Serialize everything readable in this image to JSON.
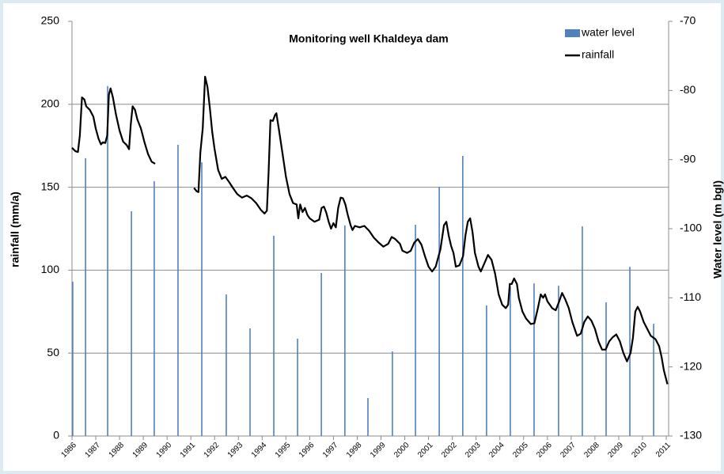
{
  "chart_data": {
    "type": "bar",
    "title": "Monitoring well Khaldeya dam",
    "y_label": "rainfall (mm/a)",
    "y2_label": "Water level (m bgl)",
    "xlim": [
      1986,
      2011.1
    ],
    "xticks": [
      1986,
      1987,
      1988,
      1989,
      1990,
      1991,
      1992,
      1993,
      1994,
      1995,
      1996,
      1997,
      1998,
      1999,
      2000,
      2001,
      2002,
      2003,
      2004,
      2005,
      2006,
      2007,
      2008,
      2009,
      2010,
      2011
    ],
    "ylim": [
      0,
      250
    ],
    "yticks": [
      0,
      50,
      100,
      150,
      200,
      250
    ],
    "y2lim": [
      -130,
      -70
    ],
    "y2ticks": [
      -130,
      -120,
      -110,
      -100,
      -90,
      -80,
      -70
    ],
    "grid": true,
    "legend": "upper right",
    "series": [
      {
        "name": "water level",
        "type": "bar",
        "color": "#4f81bd",
        "x": [
          1986.03,
          1986.57,
          1987.5,
          1988.5,
          1989.46,
          1990.46,
          1991.46,
          1992.49,
          1993.49,
          1994.49,
          1995.49,
          1996.49,
          1997.48,
          1998.45,
          1999.48,
          2000.45,
          2001.45,
          2002.44,
          2003.44,
          2004.44,
          2005.44,
          2006.47,
          2007.47,
          2008.47,
          2009.47,
          2010.47
        ],
        "values": [
          93,
          167.5,
          211,
          135.5,
          153.6,
          175.6,
          165,
          85.4,
          64.9,
          120.7,
          58.7,
          98.3,
          126.9,
          22.9,
          51,
          127.4,
          150.3,
          168.9,
          78.7,
          90.2,
          92,
          90.6,
          126.4,
          80.6,
          102,
          67.7
        ]
      },
      {
        "name": "rainfall",
        "type": "line",
        "color": "#000000",
        "axis": "y2",
        "x": [
          1986.0,
          1986.15,
          1986.25,
          1986.33,
          1986.42,
          1986.52,
          1986.6,
          1986.75,
          1986.9,
          1987.0,
          1987.12,
          1987.22,
          1987.3,
          1987.4,
          1987.48,
          1987.55,
          1987.62,
          1987.72,
          1987.85,
          1988.0,
          1988.15,
          1988.3,
          1988.4,
          1988.47,
          1988.55,
          1988.65,
          1988.75,
          1988.9,
          1989.05,
          1989.2,
          1989.35,
          1989.5,
          1990.6,
          1991.13,
          1991.25,
          1991.32,
          1991.4,
          1991.5,
          1991.6,
          1991.7,
          1991.8,
          1991.9,
          1992.0,
          1992.15,
          1992.3,
          1992.45,
          1992.6,
          1992.75,
          1992.95,
          1993.15,
          1993.35,
          1993.55,
          1993.75,
          1993.95,
          1994.1,
          1994.2,
          1994.27,
          1994.35,
          1994.45,
          1994.55,
          1994.6,
          1994.7,
          1994.85,
          1995.0,
          1995.15,
          1995.3,
          1995.45,
          1995.52,
          1995.6,
          1995.7,
          1995.8,
          1995.9,
          1996.0,
          1996.2,
          1996.4,
          1996.5,
          1996.6,
          1996.7,
          1996.8,
          1996.9,
          1997.0,
          1997.1,
          1997.2,
          1997.3,
          1997.4,
          1997.5,
          1997.6,
          1997.72,
          1997.8,
          1997.9,
          1998.1,
          1998.3,
          1998.5,
          1998.7,
          1998.9,
          1999.1,
          1999.3,
          1999.45,
          1999.6,
          1999.8,
          1999.9,
          2000.1,
          2000.25,
          2000.4,
          2000.55,
          2000.7,
          2000.85,
          2001.0,
          2001.15,
          2001.3,
          2001.5,
          2001.65,
          2001.75,
          2001.85,
          2001.95,
          2002.05,
          2002.15,
          2002.3,
          2002.45,
          2002.55,
          2002.65,
          2002.75,
          2002.85,
          2002.95,
          2003.1,
          2003.2,
          2003.35,
          2003.5,
          2003.65,
          2003.8,
          2003.95,
          2004.1,
          2004.25,
          2004.35,
          2004.42,
          2004.5,
          2004.6,
          2004.72,
          2004.8,
          2004.95,
          2005.1,
          2005.3,
          2005.45,
          2005.6,
          2005.72,
          2005.82,
          2005.9,
          2006.0,
          2006.2,
          2006.35,
          2006.5,
          2006.62,
          2006.75,
          2006.9,
          2007.05,
          2007.25,
          2007.4,
          2007.55,
          2007.7,
          2007.85,
          2008.0,
          2008.15,
          2008.3,
          2008.45,
          2008.6,
          2008.75,
          2008.9,
          2009.05,
          2009.2,
          2009.35,
          2009.5,
          2009.6,
          2009.7,
          2009.8,
          2009.9,
          2010.05,
          2010.2,
          2010.35,
          2010.55,
          2010.7,
          2010.8,
          2010.9,
          2011.05
        ],
        "values": [
          -88.3,
          -88.8,
          -88.9,
          -86.5,
          -81.0,
          -81.3,
          -82.3,
          -82.8,
          -83.8,
          -85.5,
          -87.0,
          -87.8,
          -87.5,
          -87.6,
          -86.5,
          -80.6,
          -79.7,
          -81.0,
          -83.5,
          -85.8,
          -87.4,
          -87.9,
          -88.5,
          -85.0,
          -82.3,
          -82.8,
          -84.2,
          -85.5,
          -87.5,
          -89.2,
          -90.3,
          -90.6,
          null,
          -94.1,
          -94.6,
          -94.7,
          -89.0,
          -85.5,
          -78.0,
          -79.5,
          -82.5,
          -86.0,
          -88.5,
          -91.5,
          -92.8,
          -92.5,
          -93.2,
          -94.0,
          -95.0,
          -95.5,
          -95.2,
          -95.6,
          -96.3,
          -97.3,
          -97.8,
          -97.4,
          -92.0,
          -84.3,
          -84.4,
          -83.5,
          -83.3,
          -85.5,
          -89.0,
          -92.5,
          -95.0,
          -96.3,
          -96.5,
          -98.5,
          -96.5,
          -97.6,
          -97.0,
          -98.0,
          -98.5,
          -99.0,
          -98.7,
          -97.0,
          -96.8,
          -97.7,
          -99.0,
          -100.0,
          -99.2,
          -99.8,
          -97.0,
          -95.5,
          -95.6,
          -96.5,
          -98.0,
          -99.5,
          -100.2,
          -99.6,
          -99.8,
          -99.6,
          -100.3,
          -101.3,
          -102.0,
          -102.6,
          -102.2,
          -101.2,
          -101.5,
          -102.2,
          -103.2,
          -103.5,
          -103.2,
          -102.0,
          -101.5,
          -102.3,
          -104.0,
          -105.5,
          -106.2,
          -105.5,
          -103.0,
          -99.5,
          -99.0,
          -101.0,
          -102.5,
          -103.5,
          -105.5,
          -105.3,
          -104.0,
          -101.0,
          -99.0,
          -98.5,
          -100.5,
          -103.5,
          -105.5,
          -106.2,
          -105.0,
          -103.8,
          -104.5,
          -106.5,
          -109.5,
          -111.0,
          -111.5,
          -111.0,
          -108.0,
          -108.0,
          -107.2,
          -108.0,
          -110.0,
          -112.0,
          -113.0,
          -113.8,
          -113.7,
          -111.5,
          -109.5,
          -110.0,
          -109.5,
          -110.5,
          -111.5,
          -111.8,
          -110.5,
          -109.3,
          -110.2,
          -111.5,
          -113.5,
          -115.5,
          -115.2,
          -113.5,
          -112.7,
          -113.3,
          -114.5,
          -116.3,
          -117.5,
          -117.5,
          -116.3,
          -115.7,
          -115.3,
          -116.3,
          -118.0,
          -119.2,
          -118.0,
          -115.8,
          -112.0,
          -111.3,
          -112.0,
          -113.5,
          -114.5,
          -115.5,
          -116.0,
          -117.0,
          -118.5,
          -120.5,
          -122.5
        ]
      }
    ]
  }
}
